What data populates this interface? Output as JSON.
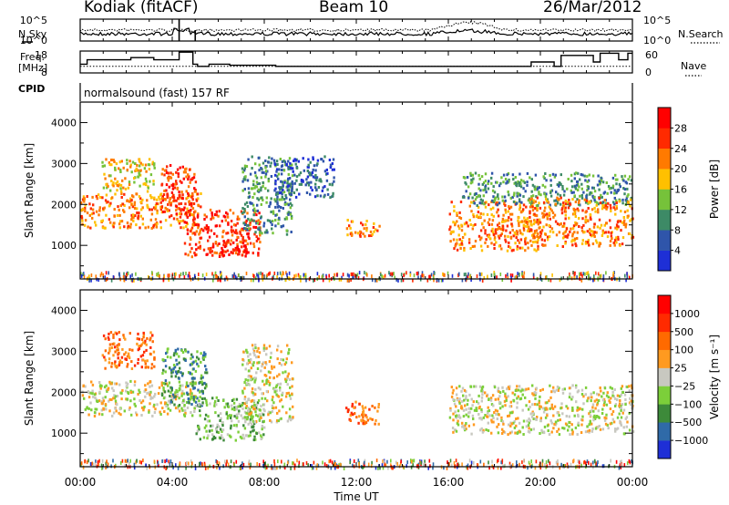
{
  "header": {
    "station": "Kodiak (fitACF)",
    "beam": "Beam 10",
    "date": "26/Mar/2012"
  },
  "chart_data": [
    {
      "type": "line",
      "panel": "nsky-nsearch",
      "left_label": "N.Sky",
      "right_label": "N.Search",
      "yticks_left": [
        "10^5",
        "10^0"
      ],
      "yticks_right": [
        "10^5",
        "10^0"
      ]
    },
    {
      "type": "line",
      "panel": "freq-nave",
      "left_label": "Freq.",
      "left_unit": "[MHz]",
      "right_label": "Nave",
      "yticks_left": [
        "18",
        "8"
      ],
      "yticks_right": [
        "60",
        "0"
      ],
      "ylim_left": [
        8,
        18
      ],
      "ylim_right": [
        0,
        60
      ],
      "freq_steps": [
        [
          0.0,
          12
        ],
        [
          0.3,
          14
        ],
        [
          2.2,
          15
        ],
        [
          3.2,
          14
        ],
        [
          4.3,
          17.5
        ],
        [
          4.9,
          12
        ],
        [
          5.1,
          11
        ],
        [
          5.6,
          12
        ],
        [
          6.5,
          11.5
        ],
        [
          8.5,
          11
        ],
        [
          12.0,
          11
        ],
        [
          19.6,
          13
        ],
        [
          20.6,
          11
        ],
        [
          20.9,
          16
        ],
        [
          22.3,
          13
        ],
        [
          22.6,
          17
        ],
        [
          23.4,
          14
        ],
        [
          23.8,
          17
        ],
        [
          24.0,
          17
        ]
      ],
      "nave_level": 18
    },
    {
      "type": "line",
      "panel": "cpid",
      "left_label": "CPID",
      "text": "normalsound (fast) 157 RF"
    },
    {
      "type": "heatmap",
      "panel": "power",
      "ylabel": "Slant Range [km]",
      "yticks": [
        "1000",
        "2000",
        "3000",
        "4000"
      ],
      "ylim": [
        180,
        4500
      ],
      "colorbar_title": "Power [dB]",
      "colorbar_ticks": [
        "4",
        "8",
        "12",
        "16",
        "20",
        "24",
        "28"
      ],
      "colorbar_colors": [
        "#1e2fd6",
        "#2f55aa",
        "#3d8a66",
        "#76c23a",
        "#ffc000",
        "#ff7a00",
        "#ff2a00",
        "#ff0000"
      ],
      "echo_regions": [
        {
          "t": [
            0.0,
            5.2
          ],
          "r": [
            1450,
            2300
          ],
          "level": 5
        },
        {
          "t": [
            0.9,
            3.2
          ],
          "r": [
            2350,
            3150
          ],
          "level": 4
        },
        {
          "t": [
            3.5,
            5.0
          ],
          "r": [
            1750,
            3000
          ],
          "level": 6
        },
        {
          "t": [
            4.5,
            7.8
          ],
          "r": [
            750,
            1900
          ],
          "level": 6
        },
        {
          "t": [
            6.0,
            7.2
          ],
          "r": [
            750,
            1150
          ],
          "level": 7
        },
        {
          "t": [
            7.0,
            9.2
          ],
          "r": [
            1300,
            3200
          ],
          "level": 2
        },
        {
          "t": [
            8.4,
            11.0
          ],
          "r": [
            2200,
            3200
          ],
          "level": 1
        },
        {
          "t": [
            11.5,
            13.0
          ],
          "r": [
            1250,
            1650
          ],
          "level": 5
        },
        {
          "t": [
            16.0,
            20.0
          ],
          "r": [
            900,
            2100
          ],
          "level": 5
        },
        {
          "t": [
            16.5,
            24.0
          ],
          "r": [
            2000,
            2800
          ],
          "level": 2
        },
        {
          "t": [
            19.5,
            24.0
          ],
          "r": [
            1000,
            2200
          ],
          "level": 5
        }
      ]
    },
    {
      "type": "heatmap",
      "panel": "velocity",
      "ylabel": "Slant Range [km]",
      "yticks": [
        "1000",
        "2000",
        "3000",
        "4000"
      ],
      "ylim": [
        180,
        4500
      ],
      "colorbar_title": "Velocity [m s⁻¹]",
      "colorbar_ticks": [
        "1000",
        "500",
        "100",
        "25",
        "−25",
        "−100",
        "−500",
        "−1000"
      ],
      "colorbar_colors": [
        "#1e2fd6",
        "#2f6aa8",
        "#3d8a3a",
        "#7ccf3a",
        "#c8c8c0",
        "#ff9a20",
        "#ff6a00",
        "#ff2a00",
        "#ff0000"
      ],
      "echo_regions": [
        {
          "t": [
            0.0,
            5.0
          ],
          "r": [
            1450,
            2300
          ],
          "level": 4
        },
        {
          "t": [
            0.9,
            3.2
          ],
          "r": [
            2600,
            3500
          ],
          "level": 6
        },
        {
          "t": [
            3.5,
            5.5
          ],
          "r": [
            1700,
            3100
          ],
          "level": 2
        },
        {
          "t": [
            5.0,
            8.0
          ],
          "r": [
            850,
            1900
          ],
          "level": 3
        },
        {
          "t": [
            7.0,
            9.2
          ],
          "r": [
            1300,
            3200
          ],
          "level": 4
        },
        {
          "t": [
            11.5,
            13.0
          ],
          "r": [
            1250,
            1800
          ],
          "level": 6
        },
        {
          "t": [
            16.0,
            24.0
          ],
          "r": [
            1000,
            2200
          ],
          "level": 4
        }
      ]
    }
  ],
  "xaxis": {
    "ticks": [
      "00:00",
      "04:00",
      "08:00",
      "12:00",
      "16:00",
      "20:00",
      "00:00"
    ],
    "label": "Time UT",
    "range_hours": [
      0,
      24
    ]
  }
}
